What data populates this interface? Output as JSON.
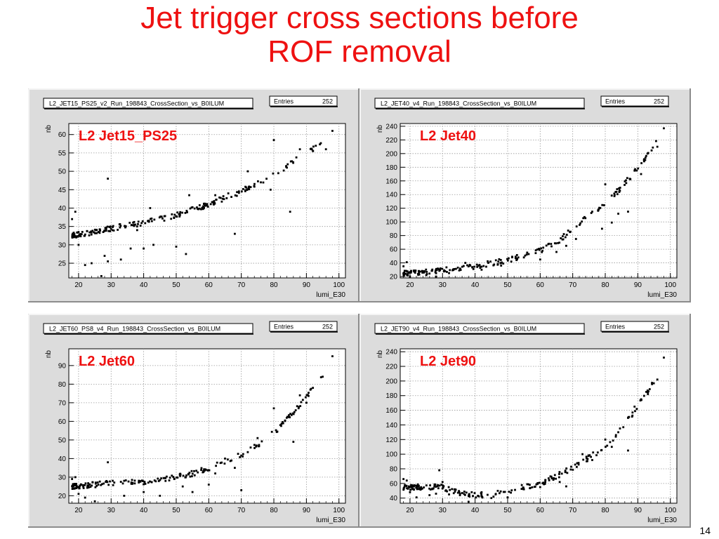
{
  "slide": {
    "title_line1": "Jet trigger cross sections before",
    "title_line2": "ROF removal",
    "page_number": "14"
  },
  "colors": {
    "title": "#ee1111",
    "pad": "#dcdcdc",
    "frame": "#ffffff",
    "grid": "#9a9a9a",
    "marker": "#000000",
    "label": "#ee1111"
  },
  "chart_data": [
    {
      "type": "scatter",
      "hist_name": "L2_JET15_PS25_v2_Run_198843_CrossSection_vs_B0ILUM",
      "stats_label": "Entries",
      "stats_value": "252",
      "annotation": "L2 Jet15_PS25",
      "xlabel": "lumi_E30",
      "ylabel": "nb",
      "xlim": [
        17,
        102
      ],
      "ylim": [
        21,
        63
      ],
      "xticks": [
        20,
        30,
        40,
        50,
        60,
        70,
        80,
        90,
        100
      ],
      "yticks": [
        25,
        30,
        35,
        40,
        45,
        50,
        55,
        60
      ],
      "grid": true,
      "trend": [
        [
          18,
          32.5
        ],
        [
          25,
          33.5
        ],
        [
          30,
          34.5
        ],
        [
          40,
          36
        ],
        [
          50,
          38
        ],
        [
          60,
          41
        ],
        [
          70,
          44.5
        ],
        [
          80,
          49
        ],
        [
          85,
          52
        ],
        [
          90,
          55
        ],
        [
          95,
          58
        ]
      ],
      "outliers": [
        [
          18,
          37
        ],
        [
          19,
          39
        ],
        [
          20,
          30
        ],
        [
          22,
          24.5
        ],
        [
          24,
          25
        ],
        [
          27,
          21.5
        ],
        [
          28,
          27
        ],
        [
          29,
          48
        ],
        [
          29,
          25.5
        ],
        [
          33,
          26
        ],
        [
          36,
          29
        ],
        [
          38,
          34
        ],
        [
          40,
          29
        ],
        [
          42,
          40
        ],
        [
          43,
          30
        ],
        [
          50,
          29.5
        ],
        [
          53,
          27.5
        ],
        [
          54,
          43.5
        ],
        [
          62,
          43.5
        ],
        [
          66,
          44
        ],
        [
          68,
          33
        ],
        [
          72,
          50
        ],
        [
          76,
          47
        ],
        [
          79,
          45
        ],
        [
          80,
          58.5
        ],
        [
          84,
          51
        ],
        [
          85,
          39
        ],
        [
          88,
          56
        ],
        [
          92,
          55.5
        ],
        [
          96,
          56
        ],
        [
          98,
          61
        ]
      ]
    },
    {
      "type": "scatter",
      "hist_name": "L2_JET40_v4_Run_198843_CrossSection_vs_B0ILUM",
      "stats_label": "Entries",
      "stats_value": "252",
      "annotation": "L2 Jet40",
      "xlabel": "lumi_E30",
      "ylabel": "nb",
      "xlim": [
        17,
        102
      ],
      "ylim": [
        18,
        244
      ],
      "xticks": [
        20,
        30,
        40,
        50,
        60,
        70,
        80,
        90,
        100
      ],
      "yticks": [
        20,
        40,
        60,
        80,
        100,
        120,
        140,
        160,
        180,
        200,
        220,
        240
      ],
      "grid": true,
      "trend": [
        [
          18,
          25
        ],
        [
          30,
          29
        ],
        [
          40,
          35
        ],
        [
          50,
          44
        ],
        [
          60,
          58
        ],
        [
          65,
          70
        ],
        [
          70,
          90
        ],
        [
          75,
          110
        ],
        [
          80,
          128
        ],
        [
          85,
          150
        ],
        [
          90,
          180
        ],
        [
          95,
          210
        ],
        [
          97,
          225
        ]
      ],
      "outliers": [
        [
          18,
          35
        ],
        [
          19,
          41
        ],
        [
          20,
          20
        ],
        [
          25,
          22
        ],
        [
          28,
          20
        ],
        [
          32,
          25
        ],
        [
          37,
          40
        ],
        [
          42,
          30
        ],
        [
          48,
          36
        ],
        [
          55,
          48
        ],
        [
          60,
          45
        ],
        [
          65,
          56
        ],
        [
          68,
          65
        ],
        [
          71,
          75
        ],
        [
          76,
          115
        ],
        [
          79,
          90
        ],
        [
          80,
          155
        ],
        [
          82,
          99
        ],
        [
          84,
          112
        ],
        [
          87,
          115
        ],
        [
          89,
          175
        ],
        [
          91,
          170
        ],
        [
          93,
          200
        ],
        [
          96,
          210
        ],
        [
          98,
          237
        ]
      ]
    },
    {
      "type": "scatter",
      "hist_name": "L2_JET60_PS8_v4_Run_198843_CrossSection_vs_B0ILUM",
      "stats_label": "Entries",
      "stats_value": "252",
      "annotation": "L2 Jet60",
      "xlabel": "lumi_E30",
      "ylabel": "nb",
      "xlim": [
        17,
        102
      ],
      "ylim": [
        16,
        99
      ],
      "xticks": [
        20,
        30,
        40,
        50,
        60,
        70,
        80,
        90,
        100
      ],
      "yticks": [
        20,
        30,
        40,
        50,
        60,
        70,
        80,
        90
      ],
      "grid": true,
      "trend": [
        [
          18,
          25
        ],
        [
          25,
          26
        ],
        [
          30,
          27
        ],
        [
          40,
          27.5
        ],
        [
          50,
          30
        ],
        [
          55,
          32
        ],
        [
          60,
          35
        ],
        [
          65,
          38
        ],
        [
          70,
          42
        ],
        [
          75,
          47
        ],
        [
          80,
          54
        ],
        [
          85,
          63
        ],
        [
          90,
          73
        ],
        [
          95,
          84
        ]
      ],
      "outliers": [
        [
          18,
          29
        ],
        [
          19,
          30
        ],
        [
          20,
          21
        ],
        [
          22,
          19
        ],
        [
          25,
          17
        ],
        [
          29,
          38
        ],
        [
          34,
          20
        ],
        [
          40,
          22
        ],
        [
          45,
          20
        ],
        [
          52,
          25
        ],
        [
          55,
          22
        ],
        [
          60,
          26
        ],
        [
          62,
          32
        ],
        [
          65,
          40
        ],
        [
          68,
          35
        ],
        [
          70,
          23
        ],
        [
          75,
          51
        ],
        [
          80,
          67
        ],
        [
          82,
          58
        ],
        [
          86,
          49
        ],
        [
          88,
          74
        ],
        [
          90,
          70
        ],
        [
          92,
          78
        ],
        [
          95,
          84
        ],
        [
          98,
          95
        ]
      ]
    },
    {
      "type": "scatter",
      "hist_name": "L2_JET90_v4_Run_198843_CrossSection_vs_B0ILUM",
      "stats_label": "Entries",
      "stats_value": "252",
      "annotation": "L2 Jet90",
      "xlabel": "lumi_E30",
      "ylabel": "nb",
      "xlim": [
        17,
        102
      ],
      "ylim": [
        33,
        244
      ],
      "xticks": [
        20,
        30,
        40,
        50,
        60,
        70,
        80,
        90,
        100
      ],
      "yticks": [
        40,
        60,
        80,
        100,
        120,
        140,
        160,
        180,
        200,
        220,
        240
      ],
      "grid": true,
      "trend": [
        [
          18,
          55
        ],
        [
          25,
          55
        ],
        [
          30,
          55
        ],
        [
          35,
          47
        ],
        [
          40,
          44
        ],
        [
          45,
          45
        ],
        [
          50,
          50
        ],
        [
          55,
          55
        ],
        [
          60,
          60
        ],
        [
          65,
          70
        ],
        [
          70,
          82
        ],
        [
          75,
          95
        ],
        [
          80,
          110
        ],
        [
          85,
          135
        ],
        [
          90,
          165
        ],
        [
          93,
          185
        ],
        [
          95,
          200
        ]
      ],
      "outliers": [
        [
          18,
          66
        ],
        [
          19,
          64
        ],
        [
          20,
          48
        ],
        [
          22,
          41
        ],
        [
          26,
          44
        ],
        [
          28,
          46
        ],
        [
          29,
          78
        ],
        [
          30,
          62
        ],
        [
          32,
          45
        ],
        [
          38,
          35
        ],
        [
          42,
          48
        ],
        [
          45,
          40
        ],
        [
          50,
          41
        ],
        [
          55,
          52
        ],
        [
          60,
          55
        ],
        [
          66,
          62
        ],
        [
          68,
          56
        ],
        [
          73,
          100
        ],
        [
          76,
          92
        ],
        [
          80,
          120
        ],
        [
          82,
          110
        ],
        [
          84,
          130
        ],
        [
          87,
          105
        ],
        [
          89,
          165
        ],
        [
          91,
          175
        ],
        [
          93,
          187
        ],
        [
          96,
          202
        ],
        [
          98,
          232
        ]
      ]
    }
  ]
}
